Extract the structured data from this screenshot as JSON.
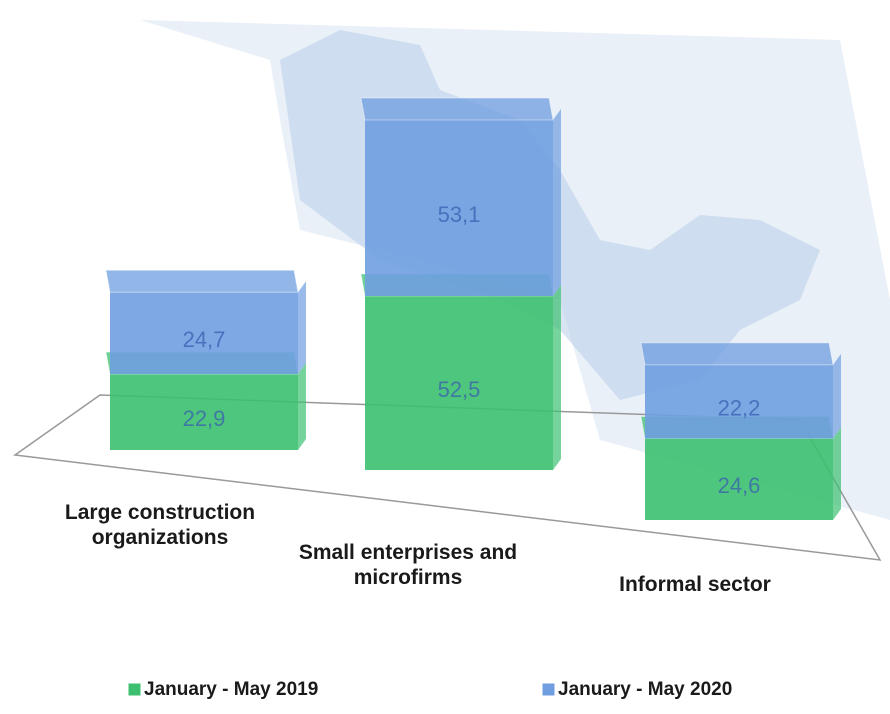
{
  "chart_data": {
    "type": "bar",
    "stacked": true,
    "categories": [
      "Large construction organizations",
      "Small enterprises and microfirms",
      "Informal sector"
    ],
    "series": [
      {
        "name": "January - May 2019",
        "color": "#3cc070",
        "values": [
          22.9,
          52.5,
          24.6
        ],
        "value_labels": [
          "22,9",
          "52,5",
          "24,6"
        ]
      },
      {
        "name": "January - May 2020",
        "color": "#6f9ee0",
        "values": [
          24.7,
          53.1,
          22.2
        ],
        "value_labels": [
          "24,7",
          "53,1",
          "22,2"
        ]
      }
    ],
    "legend": "bottom"
  }
}
